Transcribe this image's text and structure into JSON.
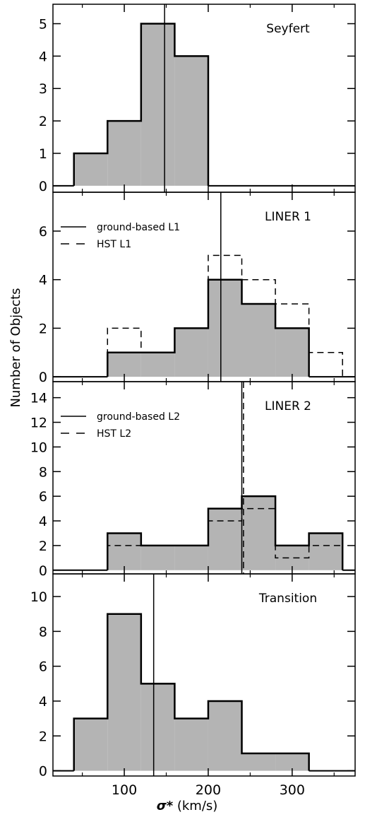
{
  "chart_data": {
    "type": "histogram-stack",
    "xlabel_symbol": "σ",
    "xlabel_star": "*",
    "xlabel_unit": " (km/s)",
    "ylabel": "Number of Objects",
    "xlim": [
      15,
      375
    ],
    "x_ticks": [
      100,
      200,
      300
    ],
    "panels": [
      {
        "label": "Seyfert",
        "ylim": [
          -0.2,
          5.6
        ],
        "y_ticks": [
          0,
          1,
          2,
          3,
          4,
          5
        ],
        "bin_edges": [
          40,
          80,
          120,
          160,
          200
        ],
        "counts": [
          1,
          2,
          5,
          4
        ],
        "dashed_edges": [],
        "dashed_counts": [],
        "solid_median": 148,
        "dashed_median": null,
        "legend": []
      },
      {
        "label": "LINER 1",
        "ylim": [
          -0.2,
          7.6
        ],
        "y_ticks": [
          0,
          2,
          4,
          6
        ],
        "bin_edges": [
          80,
          120,
          160,
          200,
          240,
          280,
          320
        ],
        "counts": [
          1,
          1,
          2,
          4,
          3,
          2
        ],
        "dashed_edges": [
          80,
          120,
          160,
          200,
          240,
          280,
          320,
          360
        ],
        "dashed_counts": [
          2,
          1,
          2,
          5,
          4,
          3,
          1
        ],
        "solid_median": 215,
        "dashed_median": null,
        "legend": [
          {
            "style": "solid",
            "text": "ground-based L1"
          },
          {
            "style": "dashed",
            "text": "HST L1"
          }
        ]
      },
      {
        "label": "LINER 2",
        "ylim": [
          -0.3,
          15.3
        ],
        "y_ticks": [
          0,
          2,
          4,
          6,
          8,
          10,
          12,
          14
        ],
        "bin_edges": [
          80,
          120,
          160,
          200,
          240,
          280,
          320,
          360
        ],
        "counts": [
          3,
          2,
          2,
          5,
          6,
          2,
          3
        ],
        "dashed_edges": [
          80,
          120,
          160,
          200,
          240,
          280,
          320,
          360
        ],
        "dashed_counts": [
          2,
          2,
          2,
          4,
          5,
          1,
          2
        ],
        "solid_median": 240,
        "dashed_median": 242,
        "legend": [
          {
            "style": "solid",
            "text": "ground-based L2"
          },
          {
            "style": "dashed",
            "text": "HST L2"
          }
        ]
      },
      {
        "label": "Transition",
        "ylim": [
          -0.3,
          11.3
        ],
        "y_ticks": [
          0,
          2,
          4,
          6,
          8,
          10
        ],
        "bin_edges": [
          40,
          80,
          120,
          160,
          200,
          240,
          280,
          320
        ],
        "counts": [
          3,
          9,
          5,
          3,
          4,
          1,
          1
        ],
        "dashed_edges": [],
        "dashed_counts": [],
        "solid_median": 135,
        "dashed_median": null,
        "legend": []
      }
    ]
  }
}
